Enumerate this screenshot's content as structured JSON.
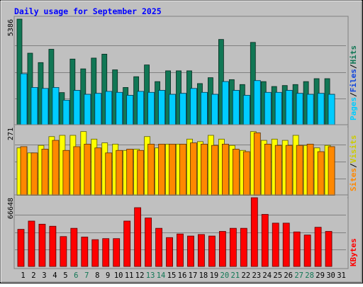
{
  "chart_data": [
    {
      "type": "bar",
      "panel": "hits-files-pages",
      "title": "Daily usage for September 2025",
      "categories": [
        "1",
        "2",
        "3",
        "4",
        "5",
        "6",
        "7",
        "8",
        "9",
        "10",
        "11",
        "12",
        "13",
        "14",
        "15",
        "16",
        "17",
        "18",
        "19",
        "20",
        "21",
        "22",
        "23",
        "24",
        "25",
        "26",
        "27",
        "28",
        "29",
        "30",
        "31"
      ],
      "weekend_days": [
        "6",
        "7",
        "13",
        "14",
        "20",
        "21",
        "27",
        "28"
      ],
      "ylabel_ticks": [
        "5386"
      ],
      "ylim": [
        0,
        5386
      ],
      "grid": true,
      "series": [
        {
          "name": "Hits",
          "color": "#117755",
          "values": [
            5400,
            3650,
            3170,
            3850,
            1640,
            3350,
            2850,
            3400,
            3600,
            2800,
            1900,
            2450,
            3050,
            2200,
            2750,
            2750,
            2750,
            2100,
            2400,
            4350,
            2300,
            2050,
            4200,
            2200,
            1950,
            2000,
            2050,
            2200,
            2350,
            2350,
            0
          ]
        },
        {
          "name": "Files",
          "color": "#1144DD",
          "values": [
            2600,
            1900,
            1850,
            1900,
            1250,
            1750,
            1550,
            1600,
            1700,
            1650,
            1500,
            1700,
            1650,
            1750,
            1550,
            1600,
            1850,
            1650,
            1550,
            2200,
            1750,
            1500,
            2250,
            1650,
            1650,
            1750,
            1600,
            1550,
            1600,
            1550,
            0
          ]
        },
        {
          "name": "Pages",
          "color": "#00CCFF",
          "values": [
            2600,
            1900,
            1850,
            1900,
            1250,
            1750,
            1550,
            1600,
            1700,
            1650,
            1500,
            1700,
            1650,
            1750,
            1550,
            1600,
            1850,
            1650,
            1550,
            2200,
            1750,
            1500,
            2250,
            1650,
            1650,
            1750,
            1600,
            1550,
            1600,
            1550,
            0
          ]
        }
      ],
      "legend": [
        "Pages",
        "Files",
        "Hits"
      ]
    },
    {
      "type": "bar",
      "panel": "visits-sites",
      "ylabel_ticks": [
        "271"
      ],
      "ylim": [
        0,
        271
      ],
      "grid": true,
      "series": [
        {
          "name": "Visits",
          "color": "#FFFF00",
          "values": [
            190,
            170,
            200,
            235,
            240,
            240,
            255,
            225,
            210,
            205,
            180,
            185,
            235,
            190,
            205,
            205,
            225,
            215,
            240,
            225,
            200,
            180,
            255,
            220,
            225,
            220,
            240,
            200,
            190,
            200,
            0
          ]
        },
        {
          "name": "Sites",
          "color": "#FF8800",
          "values": [
            195,
            170,
            185,
            220,
            180,
            195,
            205,
            190,
            170,
            180,
            185,
            180,
            205,
            205,
            205,
            205,
            210,
            205,
            200,
            205,
            185,
            175,
            250,
            205,
            200,
            200,
            200,
            205,
            175,
            195,
            0
          ]
        }
      ],
      "legend": [
        "Sites",
        "Visits"
      ]
    },
    {
      "type": "bar",
      "panel": "kbytes",
      "ylabel_ticks": [
        "66648"
      ],
      "ylim": [
        0,
        66648
      ],
      "grid": true,
      "series": [
        {
          "name": "KBytes",
          "color": "#FF0000",
          "values": [
            36000,
            44000,
            41000,
            39000,
            29000,
            37000,
            28500,
            26000,
            27000,
            27000,
            44000,
            57000,
            47000,
            37000,
            28000,
            31500,
            29500,
            31000,
            29500,
            34000,
            37000,
            37000,
            66648,
            50500,
            42000,
            42000,
            33500,
            30500,
            38000,
            34000,
            0
          ]
        }
      ],
      "legend": [
        "KBytes"
      ]
    }
  ]
}
